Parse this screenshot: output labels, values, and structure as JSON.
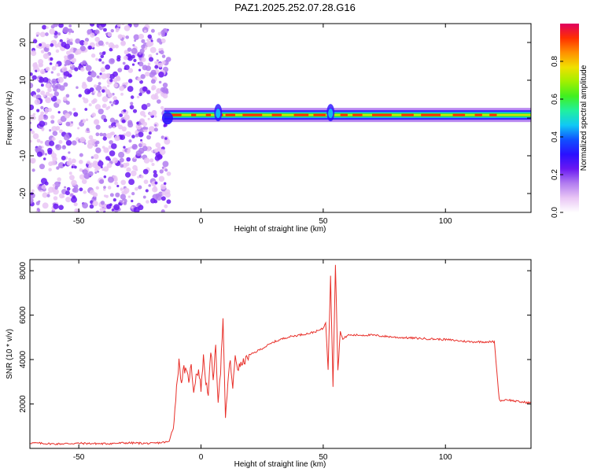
{
  "title": "PAZ1.2025.252.07.28.G16",
  "colors": {
    "snr_line": "#e8302a",
    "frame": "#000000",
    "colormap": [
      "#ffffff",
      "#e9c6f5",
      "#b27df0",
      "#6a18f2",
      "#2a10ff",
      "#1050ff",
      "#10c8f5",
      "#20f0a0",
      "#40f020",
      "#a0f000",
      "#f0e000",
      "#ff9000",
      "#ff3000",
      "#e00060"
    ]
  },
  "chart_data": [
    {
      "type": "heatmap",
      "xlabel": "Height of straight line (km)",
      "ylabel": "Frequency (Hz)",
      "xlim": [
        -70,
        135
      ],
      "ylim": [
        -25,
        25
      ],
      "xticks": [
        -50,
        0,
        50,
        100
      ],
      "yticks": [
        -20,
        -10,
        0,
        10,
        20
      ],
      "colorbar": {
        "label": "Normalized spectral amplitude",
        "range": [
          0,
          1
        ],
        "ticks": [
          0.0,
          0.2,
          0.4,
          0.6,
          0.8
        ]
      },
      "noise_region_x": [
        -70,
        -13
      ],
      "signal_band": {
        "x_start": -15,
        "x_end": 135,
        "center_freq": 0.8,
        "bursts_at_x": [
          7,
          53
        ]
      }
    },
    {
      "type": "line",
      "xlabel": "Height of straight line (km)",
      "ylabel": "SNR (10 * v/v)",
      "xlim": [
        -70,
        135
      ],
      "ylim": [
        0,
        8500
      ],
      "xticks": [
        -50,
        0,
        50,
        100
      ],
      "yticks": [
        2000,
        4000,
        6000,
        8000
      ],
      "series": [
        {
          "x": [
            -70,
            -60,
            -50,
            -40,
            -30,
            -20,
            -13,
            -11,
            -10,
            -9,
            -8,
            -7,
            -6,
            -5,
            -4,
            -3,
            -2,
            -1,
            0,
            1,
            2,
            3,
            4,
            5,
            6,
            7,
            8,
            9,
            10,
            11,
            12,
            13,
            14,
            15,
            20,
            25,
            30,
            35,
            40,
            45,
            48,
            50,
            51,
            52,
            53,
            54,
            55,
            56,
            57,
            58,
            60,
            70,
            80,
            90,
            100,
            110,
            120,
            122,
            123,
            125,
            130,
            135
          ],
          "y": [
            250,
            200,
            230,
            210,
            250,
            220,
            300,
            1200,
            2800,
            3900,
            3000,
            3600,
            3400,
            3100,
            3700,
            2600,
            3300,
            3500,
            2700,
            4100,
            3000,
            2500,
            4300,
            3200,
            4500,
            2200,
            3500,
            5800,
            1300,
            3000,
            4000,
            2600,
            4200,
            3600,
            4200,
            4500,
            4800,
            5000,
            5100,
            5200,
            5300,
            5400,
            5700,
            3500,
            7800,
            2800,
            8300,
            3500,
            5300,
            4900,
            5100,
            5100,
            5000,
            4950,
            4900,
            4800,
            4800,
            2200,
            2150,
            2200,
            2100,
            2050
          ]
        }
      ]
    }
  ]
}
